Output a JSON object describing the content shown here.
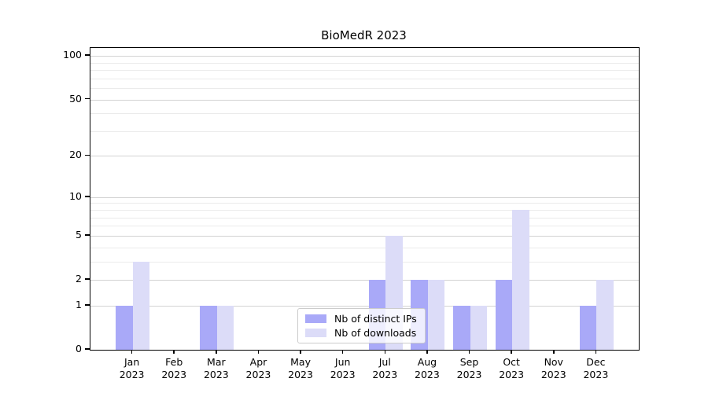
{
  "chart_data": {
    "type": "bar",
    "title": "BioMedR 2023",
    "categories": [
      "Jan 2023",
      "Feb 2023",
      "Mar 2023",
      "Apr 2023",
      "May 2023",
      "Jun 2023",
      "Jul 2023",
      "Aug 2023",
      "Sep 2023",
      "Oct 2023",
      "Nov 2023",
      "Dec 2023"
    ],
    "series": [
      {
        "name": "Nb of distinct IPs",
        "color": "#a9a9f8",
        "values": [
          1,
          0,
          1,
          0,
          0,
          0,
          2,
          2,
          1,
          2,
          0,
          1
        ]
      },
      {
        "name": "Nb of downloads",
        "color": "#dcdcf8",
        "values": [
          3,
          0,
          1,
          0,
          0,
          0,
          5,
          2,
          1,
          8,
          0,
          2
        ]
      }
    ],
    "yscale": "log1p",
    "y_major_ticks": [
      0,
      1,
      2,
      5,
      10,
      20,
      50,
      100
    ],
    "y_minor_gridlines": [
      3,
      4,
      6,
      7,
      8,
      9,
      30,
      40,
      60,
      70,
      80,
      90
    ],
    "ylim": [
      0,
      113
    ],
    "xlabel": "",
    "ylabel": "",
    "grid": "horizontal",
    "legend_position": "lower center",
    "colors": {
      "major_gridline": "#d2d2d2",
      "minor_gridline": "#ebebeb",
      "axis": "#000000",
      "text": "#000000"
    }
  }
}
